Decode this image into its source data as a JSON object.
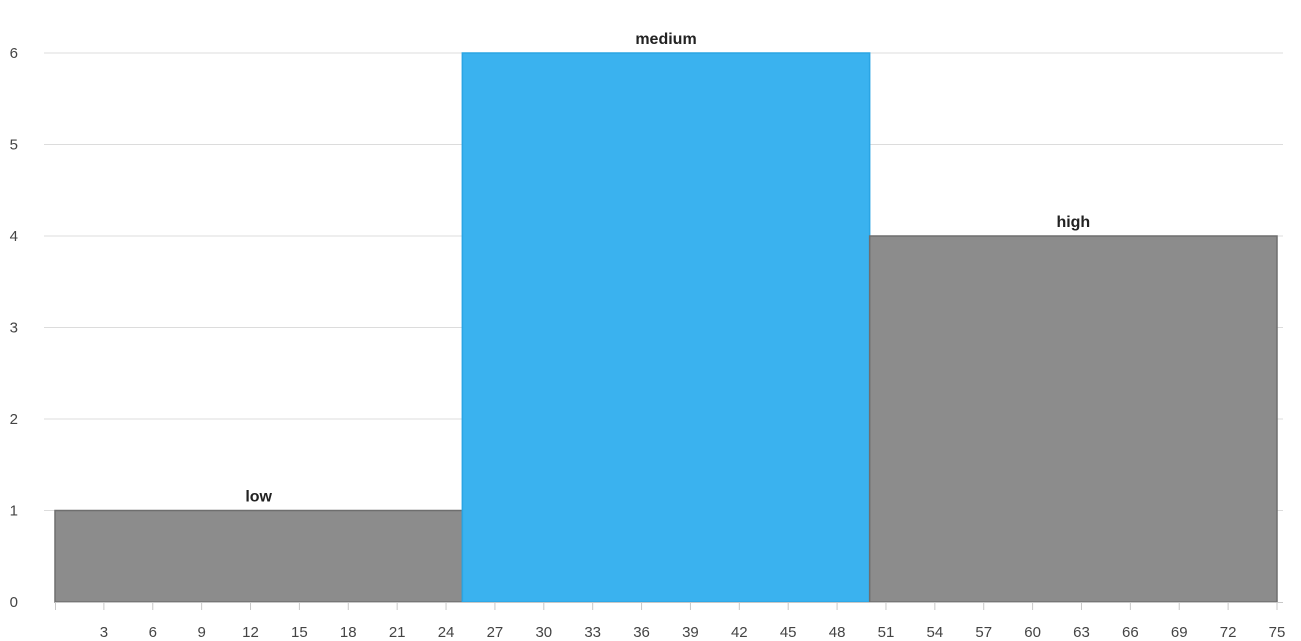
{
  "chart_data": {
    "type": "bar",
    "bins": [
      {
        "label": "low",
        "start": 0,
        "end": 25,
        "value": 1,
        "color": "#8c8c8c"
      },
      {
        "label": "medium",
        "start": 25,
        "end": 50,
        "value": 6,
        "color": "#3ab2ef"
      },
      {
        "label": "high",
        "start": 50,
        "end": 75,
        "value": 4,
        "color": "#8c8c8c"
      }
    ],
    "xlim": [
      0,
      75
    ],
    "ylim": [
      0,
      6.5
    ],
    "xticks": [
      3,
      6,
      9,
      12,
      15,
      18,
      21,
      24,
      27,
      30,
      33,
      36,
      39,
      42,
      45,
      48,
      51,
      54,
      57,
      60,
      63,
      66,
      69,
      72,
      75
    ],
    "yticks": [
      0,
      1,
      2,
      3,
      4,
      5,
      6
    ],
    "grid": true,
    "title": "",
    "xlabel": "",
    "ylabel": ""
  }
}
